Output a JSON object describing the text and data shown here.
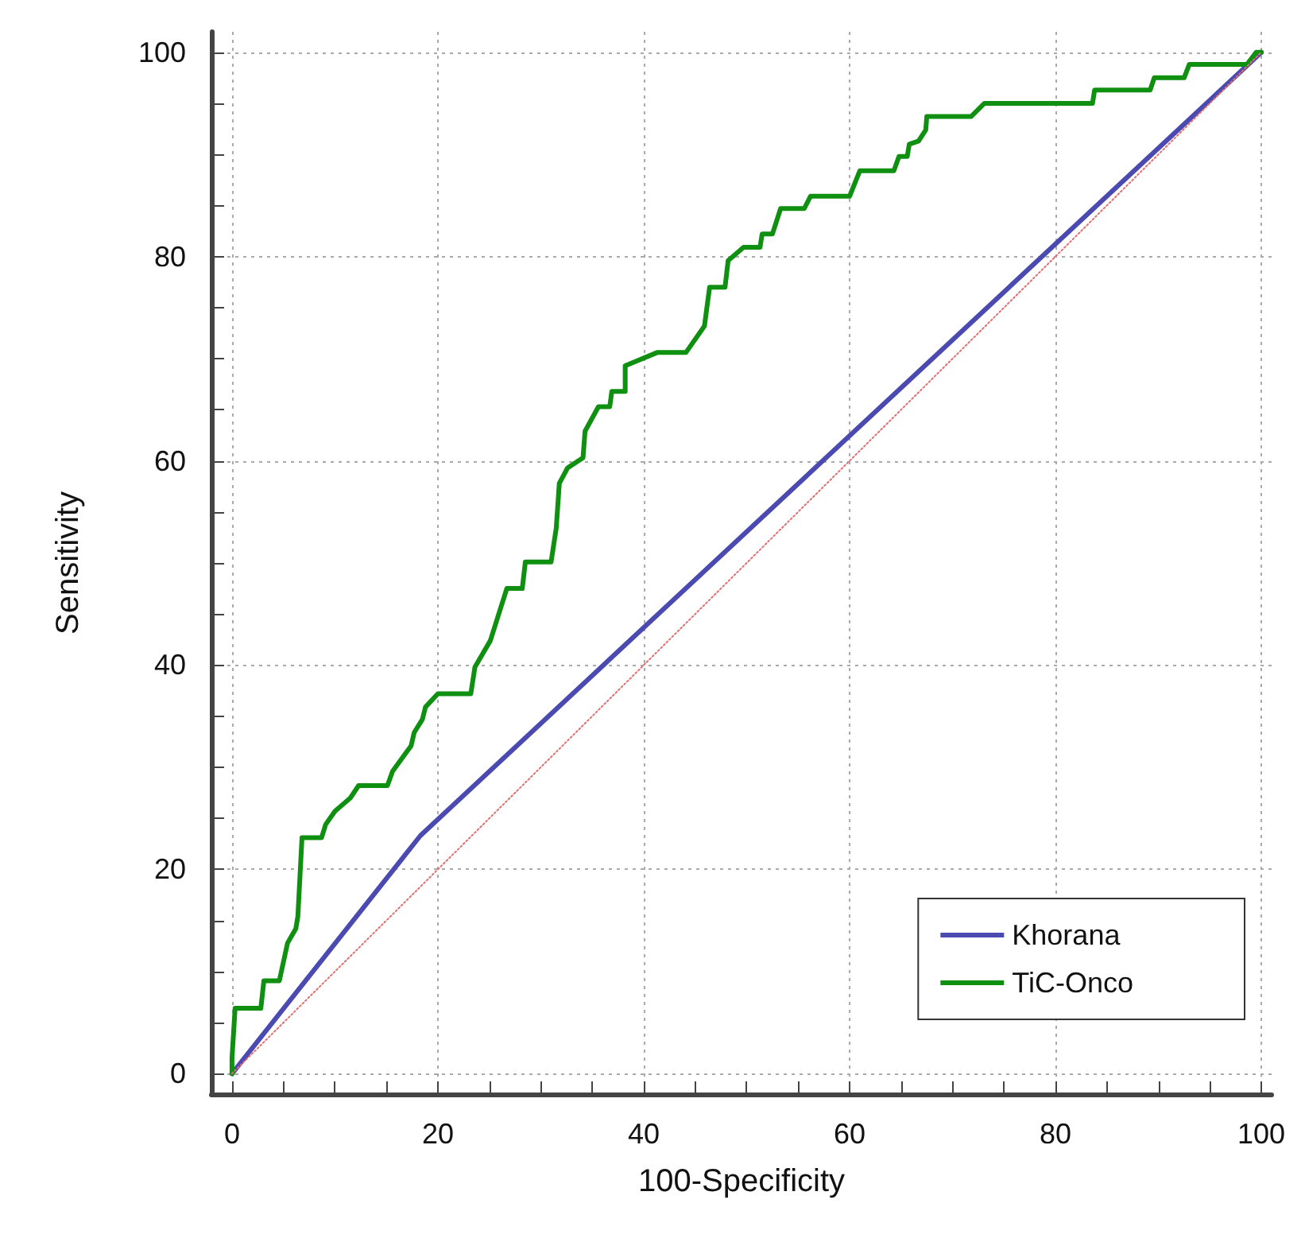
{
  "chart_data": {
    "type": "line",
    "xlabel": "100-Specificity",
    "ylabel": "Sensitivity",
    "xlim": [
      -2,
      101
    ],
    "ylim": [
      -2,
      102
    ],
    "xticks": [
      0,
      {
        "value": 5,
        "label": null
      },
      {
        "value": 10,
        "label": null
      },
      {
        "value": 15,
        "label": null
      },
      20,
      {
        "value": 25,
        "label": null
      },
      {
        "value": 30,
        "label": null
      },
      {
        "value": 35,
        "label": null
      },
      40,
      {
        "value": 45,
        "label": null
      },
      {
        "value": 50,
        "label": null
      },
      {
        "value": 55,
        "label": null
      },
      60,
      {
        "value": 65,
        "label": null
      },
      {
        "value": 70,
        "label": null
      },
      {
        "value": 75,
        "label": null
      },
      80,
      {
        "value": 85,
        "label": null
      },
      {
        "value": 90,
        "label": null
      },
      {
        "value": 95,
        "label": null
      },
      100
    ],
    "yticks": [
      0,
      {
        "value": 5,
        "label": null
      },
      {
        "value": 10,
        "label": null
      },
      {
        "value": 15,
        "label": null
      },
      20,
      {
        "value": 25,
        "label": null
      },
      {
        "value": 30,
        "label": null
      },
      {
        "value": 35,
        "label": null
      },
      40,
      {
        "value": 45,
        "label": null
      },
      {
        "value": 50,
        "label": null
      },
      {
        "value": 55,
        "label": null
      },
      60,
      {
        "value": 65,
        "label": null
      },
      {
        "value": 70,
        "label": null
      },
      {
        "value": 75,
        "label": null
      },
      80,
      {
        "value": 85,
        "label": null
      },
      {
        "value": 90,
        "label": null
      },
      {
        "value": 95,
        "label": null
      },
      100
    ],
    "grid": true,
    "legend": "bottom right",
    "marker": "none",
    "series": [
      {
        "color": "#e07070",
        "line_style": "dotted",
        "x": [
          0,
          100
        ],
        "values": [
          0,
          100
        ]
      },
      {
        "name": "Khorana",
        "color": "#4a4ab0",
        "line_style": "solid",
        "x": [
          0,
          18.3,
          100
        ],
        "values": [
          0,
          23.3,
          100
        ]
      },
      {
        "name": "TiC-Onco",
        "color": "#109010",
        "line_style": "solid",
        "x": [
          0,
          0,
          0.3,
          2.8,
          3.1,
          4.6,
          5.4,
          6.2,
          6.4,
          6.8,
          8.7,
          9.1,
          10,
          11.5,
          12.3,
          15.1,
          15.6,
          17.4,
          17.7,
          18.5,
          18.8,
          20,
          23.2,
          23.6,
          25.1,
          26.7,
          28.2,
          28.5,
          31,
          31.5,
          31.8,
          32.6,
          34.1,
          34.3,
          35.6,
          36.7,
          36.9,
          38.2,
          38.2,
          41.3,
          44.1,
          45.9,
          46.4,
          47.9,
          48.2,
          49.7,
          51.3,
          51.5,
          52.5,
          53.3,
          55.6,
          56.2,
          60,
          61,
          64.3,
          64.8,
          65.6,
          65.8,
          66.7,
          67.4,
          67.5,
          71.8,
          73.1,
          83.6,
          83.8,
          89.2,
          89.6,
          92.5,
          93,
          98.6,
          99.5,
          100
        ],
        "values": [
          0,
          1.5,
          6.4,
          6.4,
          9.1,
          9.1,
          12.8,
          14.2,
          15.4,
          23.1,
          23.1,
          24.4,
          25.7,
          27,
          28.2,
          28.2,
          29.6,
          32.1,
          33.4,
          34.7,
          35.9,
          37.2,
          37.2,
          39.8,
          42.4,
          47.5,
          47.5,
          50.1,
          50.1,
          53.4,
          57.8,
          59.3,
          60.3,
          62.9,
          65.3,
          65.3,
          66.8,
          66.8,
          69.3,
          70.6,
          70.6,
          73.2,
          77,
          77,
          79.6,
          80.9,
          80.9,
          82.2,
          82.2,
          84.7,
          84.7,
          85.9,
          85.9,
          88.4,
          88.4,
          89.8,
          89.8,
          91,
          91.3,
          92.4,
          93.7,
          93.7,
          95,
          95,
          96.3,
          96.3,
          97.5,
          97.5,
          98.8,
          98.8,
          100,
          100
        ]
      }
    ]
  }
}
